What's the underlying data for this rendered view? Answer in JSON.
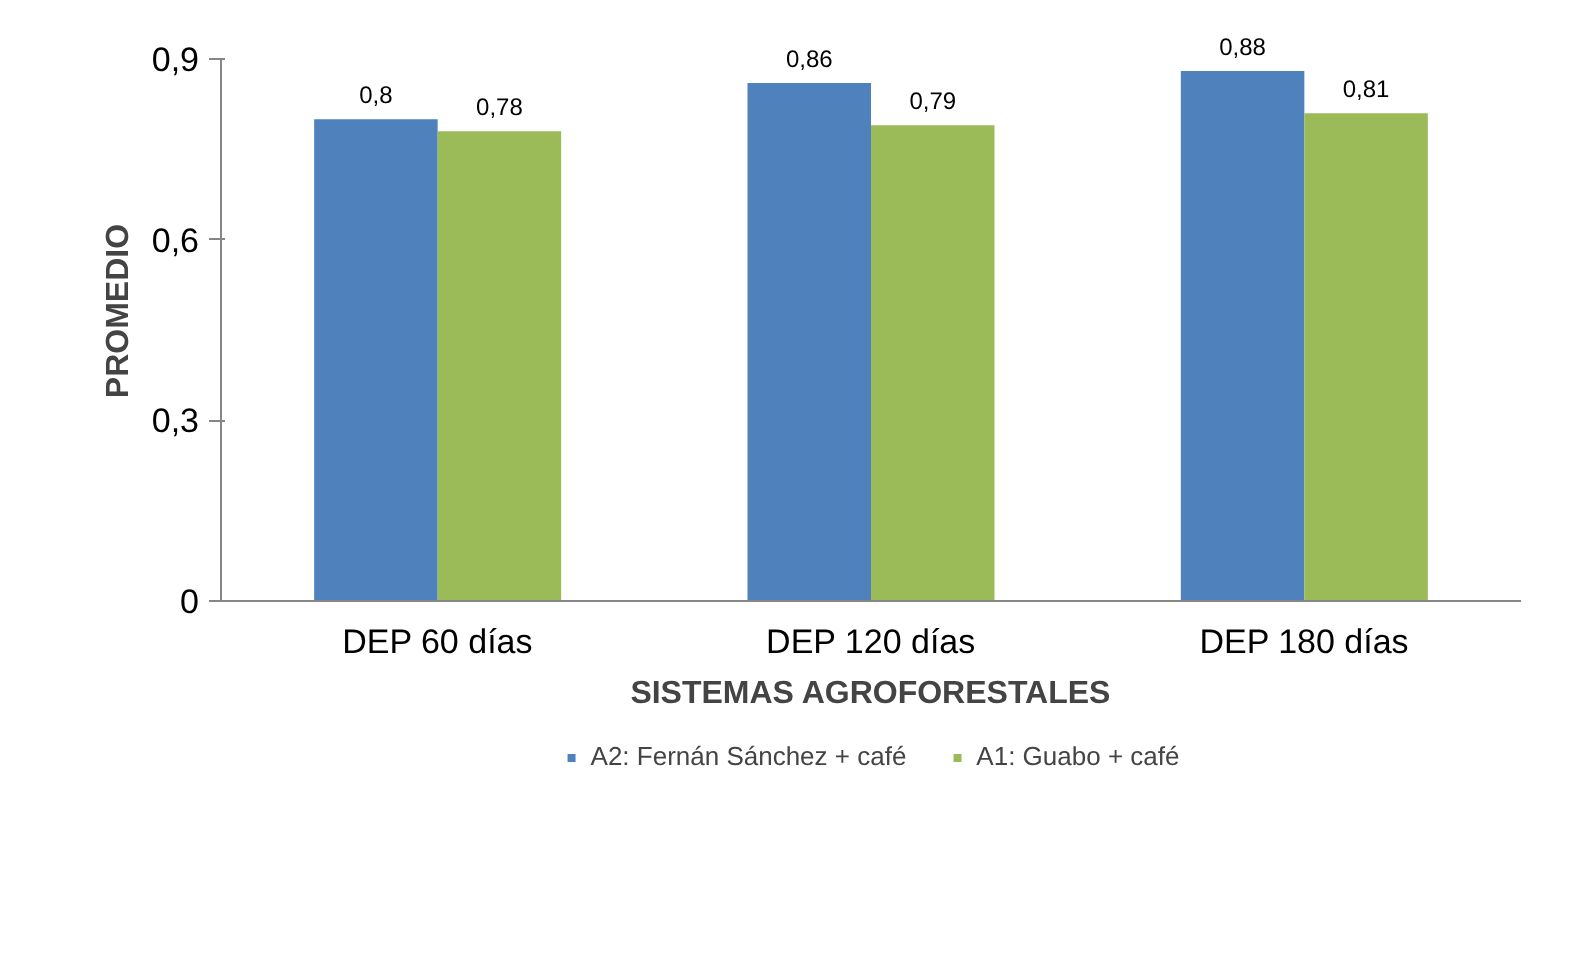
{
  "chart_data": {
    "type": "bar",
    "xlabel": "SISTEMAS AGROFORESTALES",
    "ylabel": "PROMEDIO",
    "categories": [
      "DEP 60 días",
      "DEP 120 días",
      "DEP 180 días"
    ],
    "series": [
      {
        "name": "A2: Fernán Sánchez + café",
        "color": "#4f81bd",
        "values": [
          0.8,
          0.86,
          0.88
        ],
        "value_labels": [
          "0,8",
          "0,86",
          "0,88"
        ]
      },
      {
        "name": "A1: Guabo + café",
        "color": "#9bbb59",
        "values": [
          0.78,
          0.79,
          0.81
        ],
        "value_labels": [
          "0,78",
          "0,79",
          "0,81"
        ]
      }
    ],
    "ylim": [
      0,
      0.9
    ],
    "yticks": [
      {
        "value": 0,
        "label": "0"
      },
      {
        "value": 0.3,
        "label": "0,3"
      },
      {
        "value": 0.6,
        "label": "0,6"
      },
      {
        "value": 0.9,
        "label": "0,9"
      }
    ],
    "grid": false,
    "legend": "bottom"
  }
}
